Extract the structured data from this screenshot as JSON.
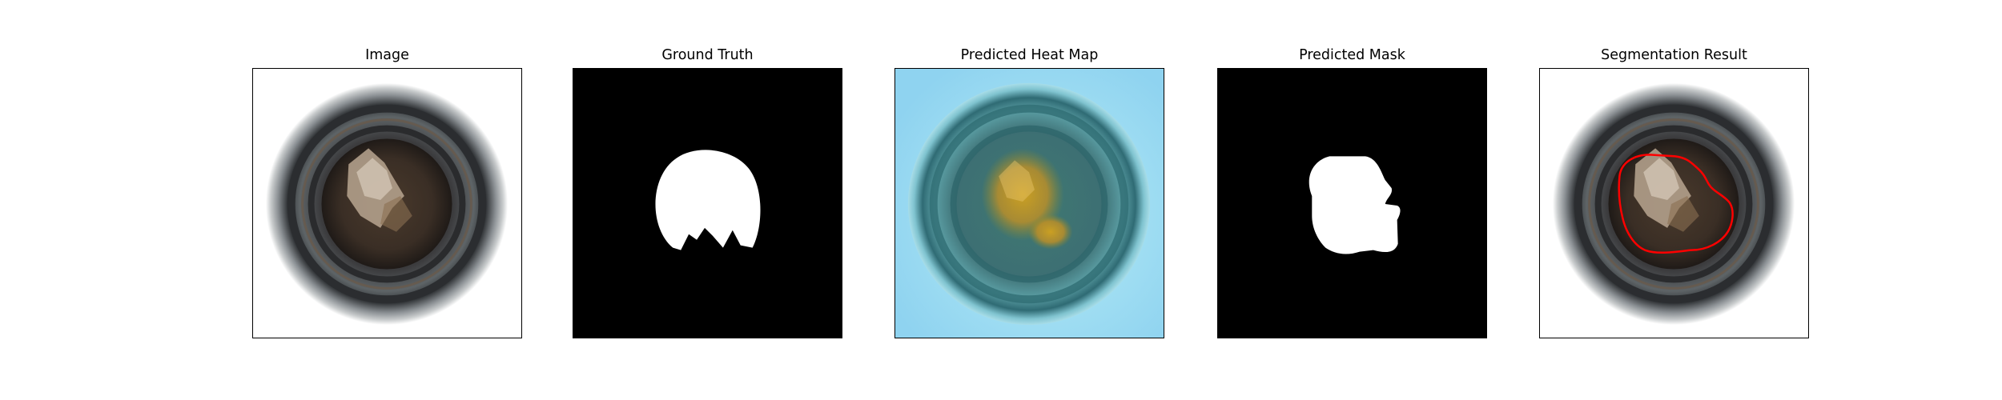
{
  "figure": {
    "panels": [
      {
        "title": "Image"
      },
      {
        "title": "Ground Truth"
      },
      {
        "title": "Predicted Heat Map"
      },
      {
        "title": "Predicted Mask"
      },
      {
        "title": "Segmentation Result"
      }
    ]
  },
  "colors": {
    "background": "#ffffff",
    "mask_fill": "#ffffff",
    "mask_background": "#000000",
    "contour": "#ff0000",
    "heatmap_low": "#8fd3f0",
    "heatmap_high": "#d2a21e"
  }
}
